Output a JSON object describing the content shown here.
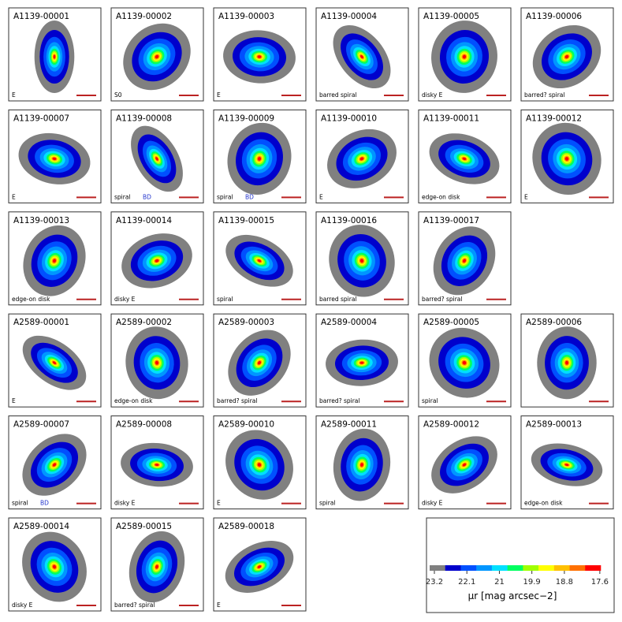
{
  "panels": [
    {
      "id": "A1139-00001",
      "type": "E"
    },
    {
      "id": "A1139-00002",
      "type": "S0"
    },
    {
      "id": "A1139-00003",
      "type": "E"
    },
    {
      "id": "A1139-00004",
      "type": "barred spiral"
    },
    {
      "id": "A1139-00005",
      "type": "disky E"
    },
    {
      "id": "A1139-00006",
      "type": "barred? spiral"
    },
    {
      "id": "A1139-00007",
      "type": "E"
    },
    {
      "id": "A1139-00008",
      "type": "spiral",
      "note": "BD"
    },
    {
      "id": "A1139-00009",
      "type": "spiral",
      "note": "BD"
    },
    {
      "id": "A1139-00010",
      "type": "E"
    },
    {
      "id": "A1139-00011",
      "type": "edge-on disk"
    },
    {
      "id": "A1139-00012",
      "type": "E"
    },
    {
      "id": "A1139-00013",
      "type": "edge-on disk"
    },
    {
      "id": "A1139-00014",
      "type": "disky E"
    },
    {
      "id": "A1139-00015",
      "type": "spiral"
    },
    {
      "id": "A1139-00016",
      "type": "barred spiral"
    },
    {
      "id": "A1139-00017",
      "type": "barred? spiral"
    },
    null,
    {
      "id": "A2589-00001",
      "type": "E"
    },
    {
      "id": "A2589-00002",
      "type": "edge-on disk"
    },
    {
      "id": "A2589-00003",
      "type": "barred? spiral"
    },
    {
      "id": "A2589-00004",
      "type": "barred? spiral"
    },
    {
      "id": "A2589-00005",
      "type": "spiral"
    },
    {
      "id": "A2589-00006"
    },
    {
      "id": "A2589-00007",
      "type": "spiral",
      "note": "BD"
    },
    {
      "id": "A2589-00008",
      "type": "disky E"
    },
    {
      "id": "A2589-00010",
      "type": "E"
    },
    {
      "id": "A2589-00011",
      "type": "spiral"
    },
    {
      "id": "A2589-00012",
      "type": "disky E"
    },
    {
      "id": "A2589-00013",
      "type": "edge-on disk"
    },
    {
      "id": "A2589-00014",
      "type": "disky E"
    },
    {
      "id": "A2589-00015",
      "type": "barred? spiral"
    },
    {
      "id": "A2589-00018",
      "type": "E"
    }
  ],
  "colorbar": {
    "colors": [
      "#808080",
      "#0000cc",
      "#0050ff",
      "#0096ff",
      "#00e0ff",
      "#00ff60",
      "#a0ff00",
      "#ffff00",
      "#ffc000",
      "#ff7000",
      "#ff0000"
    ],
    "lim": [
      23.36,
      17.57
    ],
    "ticks": [
      23.2,
      22.1,
      21.0,
      19.9,
      18.8,
      17.6
    ],
    "label": "μr [mag arcsec−2]"
  }
}
